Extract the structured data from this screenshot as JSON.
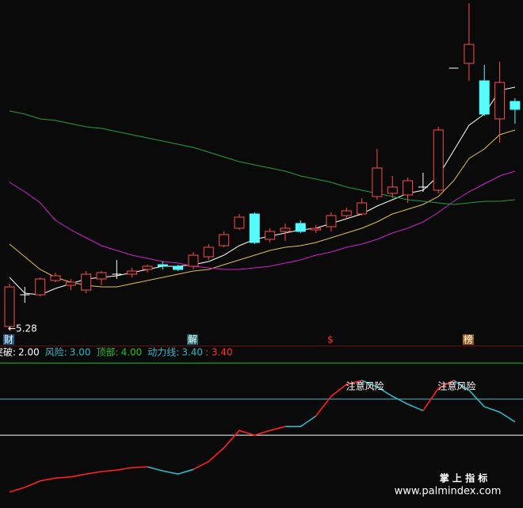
{
  "chart_data": [
    {
      "type": "candlestick",
      "ylim": [
        5.2,
        7.35
      ],
      "open": [
        5.29,
        5.49,
        5.49,
        5.58,
        5.55,
        5.52,
        5.59,
        5.62,
        5.62,
        5.65,
        5.68,
        5.67,
        5.67,
        5.73,
        5.8,
        5.91,
        6.0,
        5.84,
        5.89,
        5.94,
        5.9,
        5.92,
        5.99,
        6.0,
        6.11,
        6.13,
        6.12,
        6.17,
        6.15,
        6.92,
        6.95,
        6.84,
        6.6,
        6.71
      ],
      "close": [
        5.54,
        5.49,
        5.59,
        5.61,
        5.57,
        5.62,
        5.63,
        5.62,
        5.64,
        5.67,
        5.67,
        5.65,
        5.74,
        5.79,
        5.87,
        5.98,
        5.82,
        5.89,
        5.91,
        5.89,
        5.91,
        5.99,
        6.02,
        6.07,
        6.29,
        6.17,
        6.21,
        6.17,
        6.53,
        6.92,
        7.07,
        6.63,
        6.83,
        6.66
      ],
      "high": [
        5.56,
        5.54,
        5.6,
        5.63,
        5.59,
        5.64,
        5.64,
        5.71,
        5.66,
        5.68,
        5.7,
        5.68,
        5.76,
        5.81,
        5.89,
        6.0,
        6.01,
        5.91,
        5.94,
        5.96,
        5.93,
        6.01,
        6.04,
        6.1,
        6.41,
        6.24,
        6.23,
        6.26,
        6.55,
        6.92,
        7.33,
        6.94,
        6.96,
        6.73
      ],
      "low": [
        5.28,
        5.44,
        5.48,
        5.57,
        5.52,
        5.5,
        5.55,
        5.59,
        5.6,
        5.63,
        5.65,
        5.64,
        5.65,
        5.71,
        5.79,
        5.9,
        5.81,
        5.82,
        5.83,
        5.88,
        5.88,
        5.89,
        5.97,
        5.99,
        6.09,
        6.1,
        6.07,
        6.14,
        6.13,
        6.92,
        6.84,
        6.62,
        6.45,
        6.57
      ],
      "up_color": "#ff4a4a",
      "down_color": "#54fcfc",
      "flat_color": "#ffffff",
      "lines": [
        {
          "color": "#ffffff",
          "values": [
            5.6,
            5.5,
            5.49,
            5.53,
            5.56,
            5.59,
            5.6,
            5.61,
            5.63,
            5.65,
            5.67,
            5.67,
            5.68,
            5.7,
            5.74,
            5.8,
            5.84,
            5.86,
            5.88,
            5.9,
            5.91,
            5.94,
            5.97,
            6.0,
            6.05,
            6.09,
            6.13,
            6.15,
            6.24,
            6.4,
            6.56,
            6.63,
            6.78,
            6.8
          ]
        },
        {
          "color": "#e0c050",
          "values": [
            5.81,
            5.73,
            5.65,
            5.6,
            5.57,
            5.55,
            5.54,
            5.54,
            5.56,
            5.58,
            5.6,
            5.62,
            5.64,
            5.65,
            5.68,
            5.71,
            5.74,
            5.77,
            5.79,
            5.8,
            5.82,
            5.85,
            5.88,
            5.91,
            5.95,
            6.0,
            6.03,
            6.06,
            6.11,
            6.21,
            6.35,
            6.41,
            6.5,
            6.53
          ]
        },
        {
          "color": "#d020d0",
          "values": [
            6.2,
            6.14,
            6.07,
            5.96,
            5.9,
            5.85,
            5.8,
            5.77,
            5.74,
            5.72,
            5.7,
            5.69,
            5.67,
            5.66,
            5.65,
            5.65,
            5.66,
            5.67,
            5.69,
            5.71,
            5.74,
            5.76,
            5.79,
            5.81,
            5.84,
            5.88,
            5.91,
            5.95,
            6.01,
            6.08,
            6.14,
            6.19,
            6.24,
            6.27
          ]
        },
        {
          "color": "#20a040",
          "values": [
            6.65,
            6.63,
            6.6,
            6.59,
            6.57,
            6.55,
            6.54,
            6.52,
            6.5,
            6.48,
            6.46,
            6.44,
            6.42,
            6.39,
            6.36,
            6.33,
            6.31,
            6.29,
            6.27,
            6.24,
            6.22,
            6.2,
            6.17,
            6.15,
            6.13,
            6.11,
            6.09,
            6.08,
            6.07,
            6.06,
            6.07,
            6.08,
            6.08,
            6.09
          ]
        }
      ],
      "low_label": {
        "value": 5.28,
        "label": "←5.28"
      },
      "markers": [
        "财",
        "解",
        "$",
        "榜"
      ]
    },
    {
      "type": "line",
      "ylim": [
        0,
        4.4
      ],
      "levels": {
        "names": [
          "突破:",
          "风险:",
          "顶部:"
        ],
        "values": [
          2,
          3,
          4
        ],
        "value_labels": [
          "2.00",
          "3.00",
          "4.00"
        ],
        "colors": [
          "#ffffff",
          "#30b8c8",
          "#20c020"
        ]
      },
      "dynamic": {
        "name": "动力线:",
        "values": [
          3.4,
          3.4
        ],
        "value_labels": [
          "3.40",
          ": 3.40"
        ],
        "colors": [
          "#30b8c8",
          "#ff3030"
        ]
      },
      "series": [
        {
          "color": "#ff2020",
          "values": [
            0.42,
            0.55,
            0.73,
            0.81,
            0.84,
            0.92,
            0.99,
            1.03,
            1.1,
            1.12,
            null,
            null,
            1.05,
            1.27,
            1.65,
            2.13,
            2.0,
            2.13,
            2.24,
            null,
            2.53,
            3.08,
            3.41,
            3.52,
            null,
            null,
            null,
            2.68,
            3.3,
            3.52,
            null,
            null,
            null,
            null
          ]
        },
        {
          "color": "#30b8c8",
          "values": [
            null,
            null,
            null,
            null,
            null,
            null,
            null,
            null,
            null,
            1.12,
            1.01,
            0.92,
            1.05,
            null,
            null,
            null,
            null,
            null,
            2.24,
            2.24,
            2.53,
            null,
            null,
            3.52,
            3.34,
            3.08,
            2.86,
            2.68,
            null,
            3.52,
            3.25,
            2.79,
            2.64,
            2.37
          ]
        }
      ],
      "annotations": [
        "注意风险",
        "注意风险"
      ]
    }
  ],
  "watermark": {
    "title": "掌 上 指 标",
    "url": "www.palmindex.com"
  }
}
